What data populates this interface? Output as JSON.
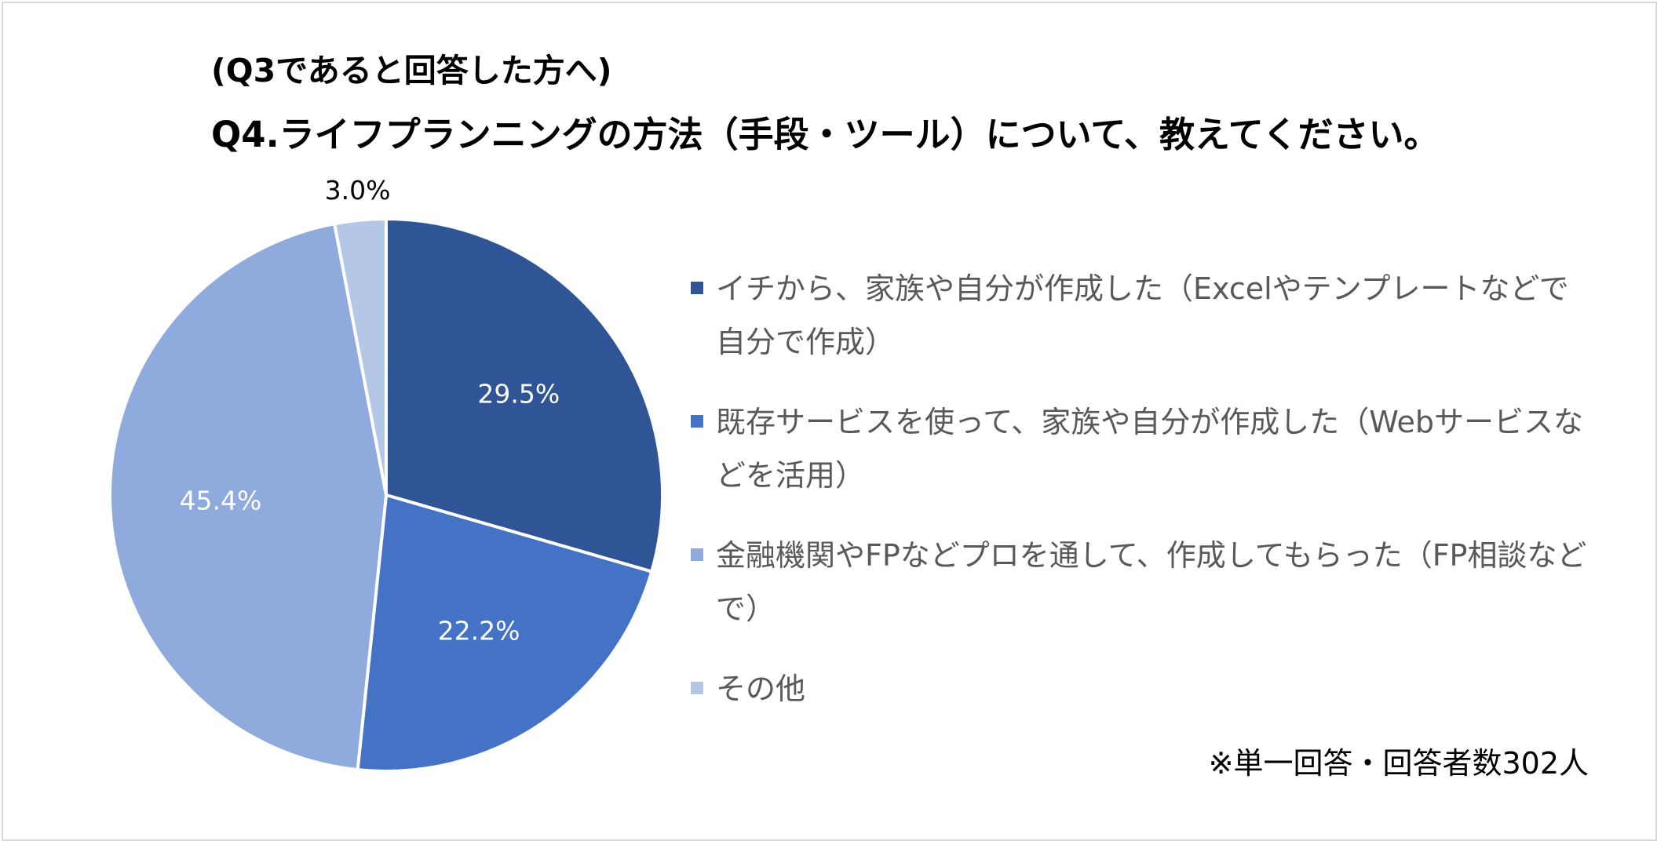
{
  "chart_data": {
    "type": "pie",
    "title": "(Q3であると回答した方へ)",
    "subtitle": "Q4.ライフプランニングの方法（手段・ツール）について、教えてください。",
    "categories": [
      "イチから、家族や自分が作成した（Excelやテンプレートなどで自分で作成）",
      "既存サービスを使って、家族や自分が作成した（Webサービスなどを活用）",
      "金融機関やFPなどプロを通して、作成してもらった（FP相談などで）",
      "その他"
    ],
    "values": [
      29.5,
      22.2,
      45.4,
      3.0
    ],
    "labels": [
      "29.5%",
      "22.2%",
      "45.4%",
      "3.0%"
    ],
    "colors": [
      "#2f5597",
      "#4472c4",
      "#8faadc",
      "#b4c7e7"
    ],
    "label_colors": [
      "#ffffff",
      "#ffffff",
      "#ffffff",
      "#000000"
    ],
    "legend_position": "right",
    "note": "※単一回答・回答者数302人"
  }
}
